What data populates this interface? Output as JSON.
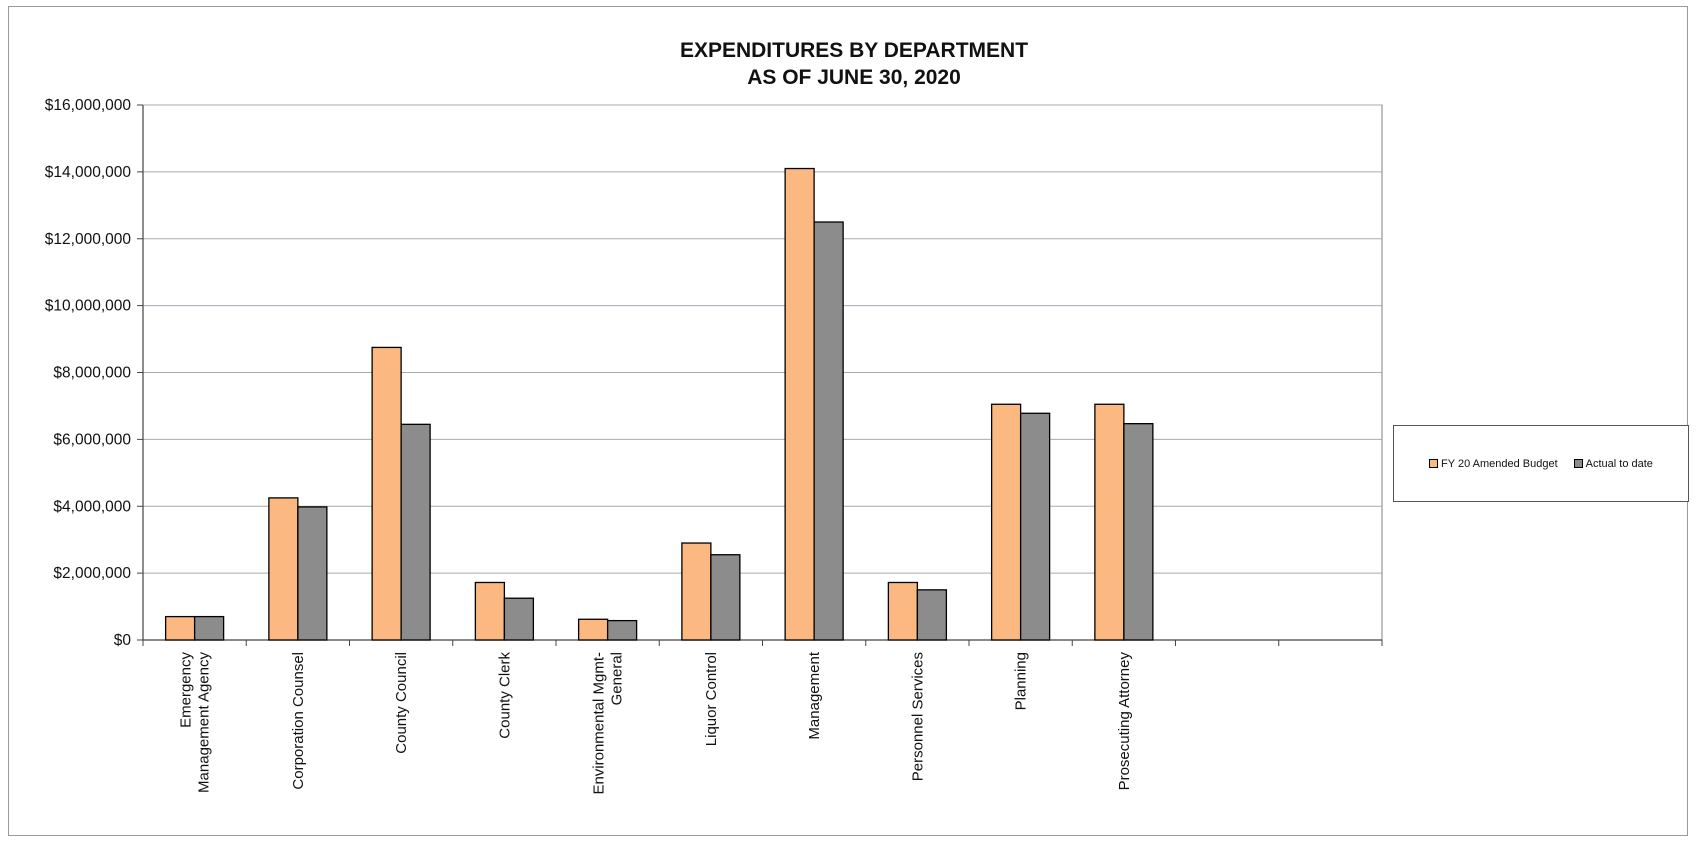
{
  "chart_data": {
    "type": "bar",
    "title": [
      "EXPENDITURES BY DEPARTMENT",
      "AS OF JUNE 30, 2020"
    ],
    "categories": [
      [
        "Emergency",
        "Management Agency"
      ],
      [
        "Corporation Counsel"
      ],
      [
        "County Council"
      ],
      [
        "County Clerk"
      ],
      [
        "Environmental Mgmt-",
        "General"
      ],
      [
        "Liquor Control"
      ],
      [
        "Management"
      ],
      [
        "Personnel Services"
      ],
      [
        "Planning"
      ],
      [
        "Prosecuting Attorney"
      ],
      [
        ""
      ],
      [
        ""
      ]
    ],
    "series": [
      {
        "name": "FY 20 Amended Budget",
        "color": "#FBB880",
        "values": [
          700000,
          4250000,
          8750000,
          1720000,
          620000,
          2900000,
          14100000,
          1720000,
          7050000,
          7050000,
          null,
          null
        ]
      },
      {
        "name": "Actual to date",
        "color": "#8C8C8C",
        "values": [
          700000,
          3980000,
          6450000,
          1250000,
          580000,
          2550000,
          12500000,
          1500000,
          6780000,
          6470000,
          null,
          null
        ]
      }
    ],
    "ylim": [
      0,
      16000000
    ],
    "yticks": [
      0,
      2000000,
      4000000,
      6000000,
      8000000,
      10000000,
      12000000,
      14000000,
      16000000
    ],
    "ytick_labels": [
      "$0",
      "$2,000,000",
      "$4,000,000",
      "$6,000,000",
      "$8,000,000",
      "$10,000,000",
      "$12,000,000",
      "$14,000,000",
      "$16,000,000"
    ],
    "xlabel": "",
    "ylabel": "",
    "grid": true,
    "legend_position": "right"
  }
}
